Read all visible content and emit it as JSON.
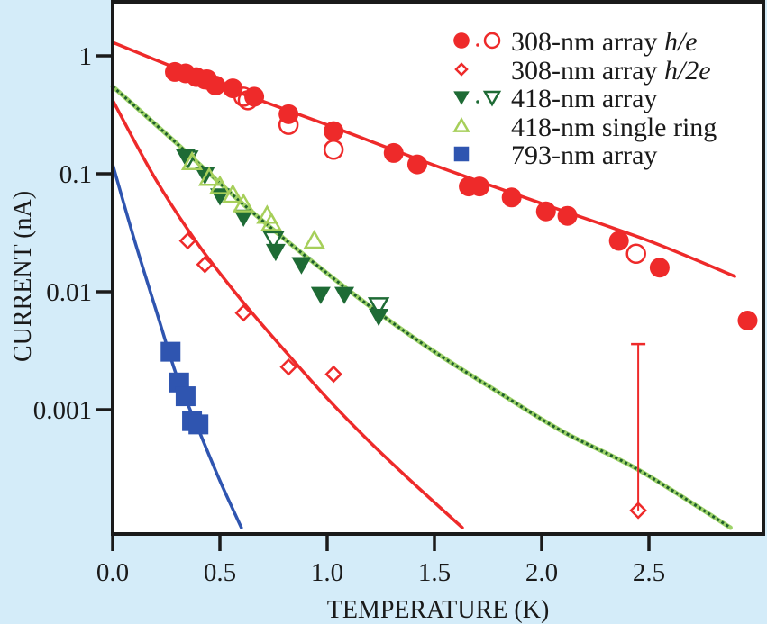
{
  "chart_data": {
    "type": "scatter",
    "title": "",
    "xlabel": "TEMPERATURE (K)",
    "ylabel": "CURRENT (nA)",
    "xscale": "linear",
    "yscale": "log",
    "xlim": [
      0.0,
      3.03
    ],
    "ylim": [
      0.0001,
      3.0
    ],
    "xticks": [
      0.0,
      0.5,
      1.0,
      1.5,
      2.0,
      2.5
    ],
    "xtick_labels": [
      "0.0",
      "0.5",
      "1.0",
      "1.5",
      "2.0",
      "2.5"
    ],
    "yticks": [
      1,
      0.1,
      0.01,
      0.001
    ],
    "ytick_labels": [
      "1",
      "0.1",
      "0.01",
      "0.001"
    ],
    "grid": false,
    "legend_position": "top-right",
    "legend": [
      {
        "label": "308-nm array ",
        "italic_suffix": "h/e",
        "markers": [
          "filled-circle",
          "open-circle"
        ],
        "color": "#ee2a2a"
      },
      {
        "label": "308-nm array ",
        "italic_suffix": "h/2e",
        "markers": [
          "open-diamond"
        ],
        "color": "#ee2a2a"
      },
      {
        "label": "418-nm array",
        "italic_suffix": "",
        "markers": [
          "filled-down-triangle",
          "open-down-triangle"
        ],
        "color": "#1e6b35"
      },
      {
        "label": "418-nm single ring",
        "italic_suffix": "",
        "markers": [
          "open-up-triangle"
        ],
        "color": "#a6cf5a"
      },
      {
        "label": "793-nm array",
        "italic_suffix": "",
        "markers": [
          "filled-square"
        ],
        "color": "#2f55b0"
      }
    ],
    "series": [
      {
        "name": "308-nm array h/e (filled)",
        "marker": "filled-circle",
        "color": "#ee2a2a",
        "points": [
          [
            0.29,
            0.73
          ],
          [
            0.34,
            0.71
          ],
          [
            0.39,
            0.66
          ],
          [
            0.43,
            0.63
          ],
          [
            0.48,
            0.56
          ],
          [
            0.56,
            0.53
          ],
          [
            0.66,
            0.45
          ],
          [
            0.82,
            0.32
          ],
          [
            1.03,
            0.23
          ],
          [
            1.31,
            0.15
          ],
          [
            1.42,
            0.12
          ],
          [
            1.66,
            0.078
          ],
          [
            1.71,
            0.078
          ],
          [
            1.86,
            0.063
          ],
          [
            2.02,
            0.048
          ],
          [
            2.12,
            0.044
          ],
          [
            2.36,
            0.027
          ],
          [
            2.55,
            0.016
          ],
          [
            2.96,
            0.0057
          ]
        ]
      },
      {
        "name": "308-nm array h/e (open)",
        "marker": "open-circle",
        "color": "#ee2a2a",
        "points": [
          [
            0.44,
            0.63
          ],
          [
            0.61,
            0.45
          ],
          [
            0.63,
            0.42
          ],
          [
            0.82,
            0.26
          ],
          [
            1.03,
            0.16
          ],
          [
            2.44,
            0.021
          ]
        ]
      },
      {
        "name": "308-nm array h/2e",
        "marker": "open-diamond",
        "color": "#ee2a2a",
        "points": [
          [
            0.35,
            0.027
          ],
          [
            0.43,
            0.017
          ],
          [
            0.61,
            0.0066
          ],
          [
            0.82,
            0.0023
          ],
          [
            1.03,
            0.002
          ],
          [
            2.45,
            0.00014
          ]
        ],
        "error_bars": [
          {
            "x": 2.45,
            "y": 0.00014,
            "upper": 0.0036
          }
        ]
      },
      {
        "name": "418-nm array (filled)",
        "marker": "filled-down-triangle",
        "color": "#1e6b35",
        "points": [
          [
            0.34,
            0.14
          ],
          [
            0.43,
            0.098
          ],
          [
            0.5,
            0.065
          ],
          [
            0.61,
            0.043
          ],
          [
            0.76,
            0.022
          ],
          [
            0.88,
            0.017
          ],
          [
            0.97,
            0.0095
          ],
          [
            1.08,
            0.0095
          ],
          [
            1.24,
            0.0062
          ]
        ]
      },
      {
        "name": "418-nm array (open)",
        "marker": "open-down-triangle",
        "color": "#1e6b35",
        "points": [
          [
            0.35,
            0.135
          ],
          [
            0.75,
            0.028
          ],
          [
            1.24,
            0.0077
          ]
        ]
      },
      {
        "name": "418-nm single ring",
        "marker": "open-up-triangle",
        "color": "#a6cf5a",
        "points": [
          [
            0.37,
            0.125
          ],
          [
            0.45,
            0.092
          ],
          [
            0.5,
            0.078
          ],
          [
            0.56,
            0.066
          ],
          [
            0.61,
            0.055
          ],
          [
            0.72,
            0.044
          ],
          [
            0.94,
            0.027
          ],
          [
            0.74,
            0.038
          ]
        ]
      },
      {
        "name": "793-nm array",
        "marker": "filled-square",
        "color": "#2f55b0",
        "points": [
          [
            0.27,
            0.0031
          ],
          [
            0.31,
            0.0017
          ],
          [
            0.34,
            0.0013
          ],
          [
            0.37,
            0.0008
          ],
          [
            0.4,
            0.00075
          ]
        ]
      }
    ],
    "fit_curves": [
      {
        "name": "fit-308-h-e",
        "color": "#ee2a2a",
        "style": "solid",
        "points": [
          [
            0.0,
            1.3
          ],
          [
            0.3,
            0.78
          ],
          [
            0.6,
            0.48
          ],
          [
            1.0,
            0.26
          ],
          [
            1.5,
            0.118
          ],
          [
            2.0,
            0.056
          ],
          [
            2.5,
            0.027
          ],
          [
            2.9,
            0.0135
          ]
        ]
      },
      {
        "name": "fit-308-h-2e",
        "color": "#ee2a2a",
        "style": "solid",
        "points": [
          [
            0.0,
            0.42
          ],
          [
            0.2,
            0.09
          ],
          [
            0.4,
            0.025
          ],
          [
            0.6,
            0.0085
          ],
          [
            0.8,
            0.0032
          ],
          [
            1.0,
            0.00125
          ],
          [
            1.2,
            0.00053
          ],
          [
            1.4,
            0.00024
          ],
          [
            1.63,
            0.0001
          ]
        ]
      },
      {
        "name": "fit-418",
        "color": "#2e8a3c",
        "style": "dotted",
        "points": [
          [
            0.0,
            0.55
          ],
          [
            0.3,
            0.18
          ],
          [
            0.6,
            0.057
          ],
          [
            0.9,
            0.02
          ],
          [
            1.2,
            0.0075
          ],
          [
            1.5,
            0.0031
          ],
          [
            1.8,
            0.0014
          ],
          [
            2.1,
            0.00065
          ],
          [
            2.45,
            0.00031
          ],
          [
            2.88,
            0.0001
          ]
        ]
      },
      {
        "name": "fit-793",
        "color": "#2f55b0",
        "style": "solid",
        "points": [
          [
            0.0,
            0.12
          ],
          [
            0.1,
            0.028
          ],
          [
            0.2,
            0.0072
          ],
          [
            0.3,
            0.0019
          ],
          [
            0.4,
            0.00068
          ],
          [
            0.5,
            0.00025
          ],
          [
            0.6,
            0.0001
          ]
        ]
      }
    ]
  }
}
